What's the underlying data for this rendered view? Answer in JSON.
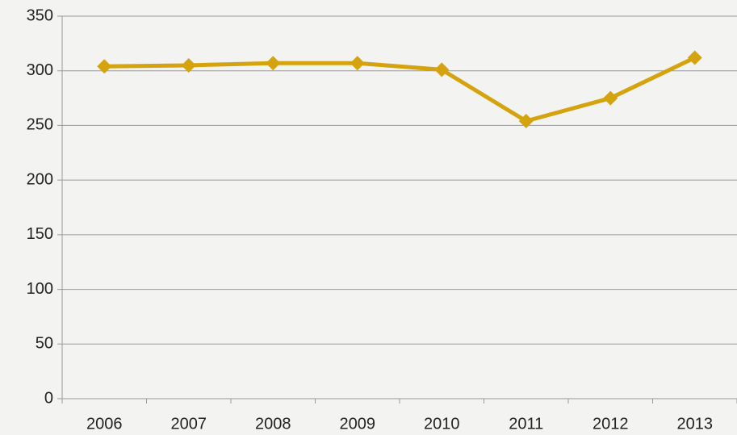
{
  "chart_data": {
    "type": "line",
    "categories": [
      "2006",
      "2007",
      "2008",
      "2009",
      "2010",
      "2011",
      "2012",
      "2013"
    ],
    "series": [
      {
        "name": null,
        "color": "#d4a30e",
        "values": [
          304,
          305,
          307,
          307,
          301,
          254,
          275,
          312
        ]
      }
    ],
    "ylim": [
      0,
      350
    ],
    "yticks": [
      0,
      50,
      100,
      150,
      200,
      250,
      300,
      350
    ],
    "grid": true
  }
}
